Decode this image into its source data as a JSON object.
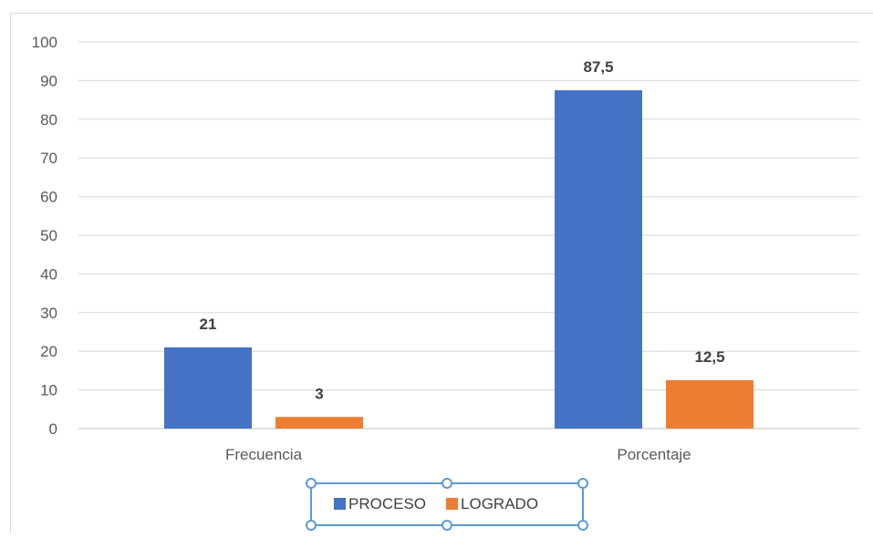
{
  "chart_data": {
    "type": "bar",
    "categories": [
      "Frecuencia",
      "Porcentaje"
    ],
    "series": [
      {
        "name": "PROCESO",
        "values": [
          21,
          87.5
        ],
        "labels": [
          "21",
          "87,5"
        ],
        "color": "#4472C4"
      },
      {
        "name": "LOGRADO",
        "values": [
          3,
          12.5
        ],
        "labels": [
          "3",
          "12,5"
        ],
        "color": "#ED7D31"
      }
    ],
    "y_ticks": [
      "0",
      "10",
      "20",
      "30",
      "40",
      "50",
      "60",
      "70",
      "80",
      "90",
      "100"
    ],
    "ylim": [
      0,
      100
    ],
    "grid": true,
    "legend_position": "bottom",
    "selection_color": "#5B9BD5"
  }
}
